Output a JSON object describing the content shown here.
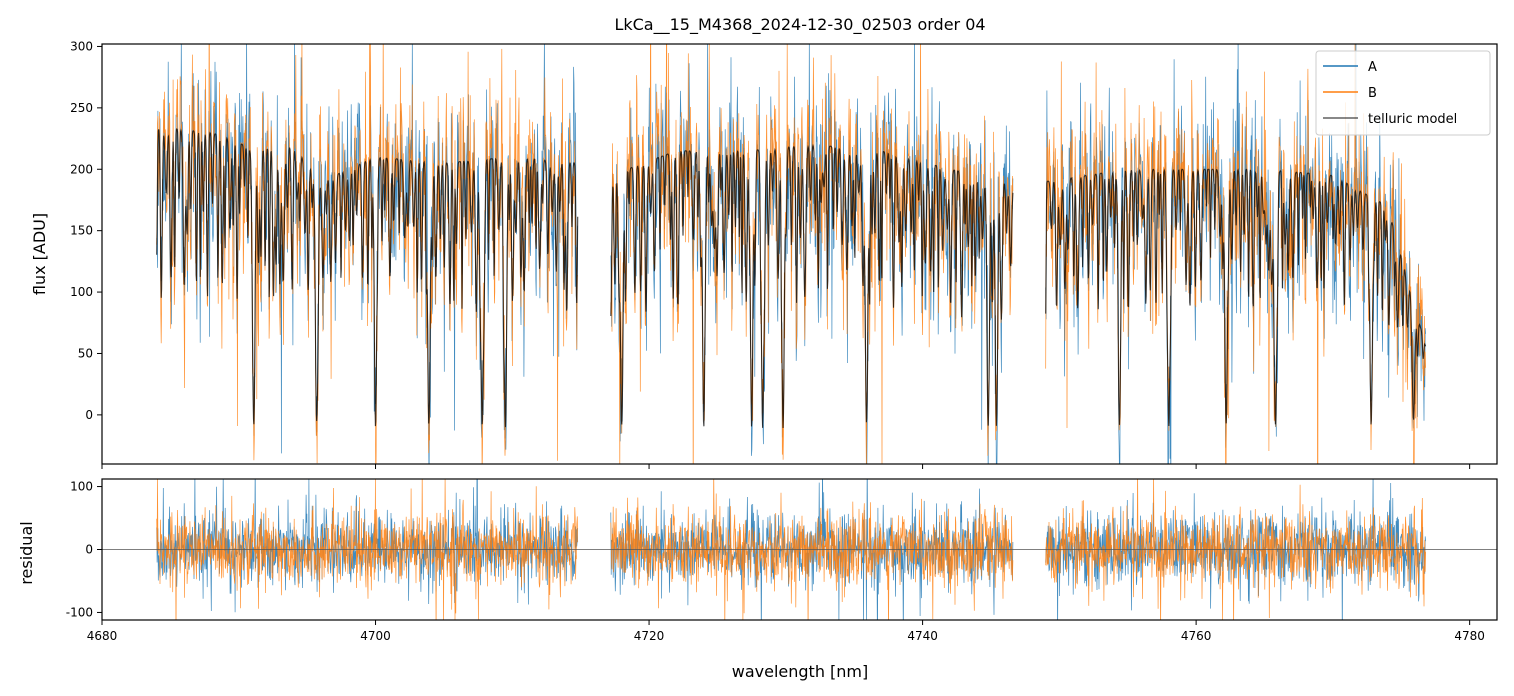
{
  "chart_data": [
    {
      "type": "line",
      "title": "LkCa__15_M4368_2024-12-30_02503  order 04",
      "xlabel": "",
      "ylabel": "flux [ADU]",
      "xlim": [
        4680,
        4782
      ],
      "ylim": [
        -40,
        302
      ],
      "x_ticks": [
        4680,
        4700,
        4720,
        4740,
        4760,
        4780
      ],
      "y_ticks": [
        0,
        50,
        100,
        150,
        200,
        250,
        300
      ],
      "grid": false,
      "legend_position": "top-right",
      "segments": [
        [
          4684.0,
          4714.8
        ],
        [
          4717.2,
          4746.6
        ],
        [
          4749.0,
          4776.8
        ]
      ],
      "series": [
        {
          "name": "A",
          "color": "#1f77b4",
          "values_note": ""
        },
        {
          "name": "B",
          "color": "#ff7f0e"
        },
        {
          "name": "telluric model",
          "color": "#000000"
        }
      ],
      "continuum_points": {
        "x": [
          4684,
          4686,
          4688,
          4690,
          4691,
          4694,
          4696,
          4700,
          4705,
          4710,
          4714.8,
          4717.2,
          4722,
          4727,
          4732,
          4737,
          4742,
          4746.6,
          4749,
          4755,
          4760,
          4765,
          4770,
          4774,
          4776.8
        ],
        "y": [
          235,
          232,
          230,
          222,
          215,
          220,
          190,
          210,
          205,
          210,
          205,
          195,
          215,
          215,
          220,
          215,
          200,
          190,
          190,
          200,
          200,
          200,
          195,
          170,
          55
        ]
      },
      "strong_absorption_lines_nm": [
        4691.1,
        4695.7,
        4700.0,
        4703.9,
        4707.8,
        4709.5,
        4718.0,
        4724.0,
        4727.5,
        4728.3,
        4729.8,
        4735.9,
        4744.8,
        4745.4,
        4754.4,
        4758.0,
        4762.2,
        4765.8,
        4772.8,
        4775.9
      ]
    },
    {
      "type": "line",
      "title": "",
      "xlabel": "wavelength [nm]",
      "ylabel": "residual",
      "xlim": [
        4680,
        4782
      ],
      "ylim": [
        -112,
        112
      ],
      "x_ticks": [
        4680,
        4700,
        4720,
        4740,
        4760,
        4780
      ],
      "y_ticks": [
        -100,
        0,
        100
      ],
      "grid": false,
      "zero_line": 0,
      "series": [
        {
          "name": "A",
          "color": "#1f77b4"
        },
        {
          "name": "B",
          "color": "#ff7f0e"
        }
      ]
    }
  ]
}
